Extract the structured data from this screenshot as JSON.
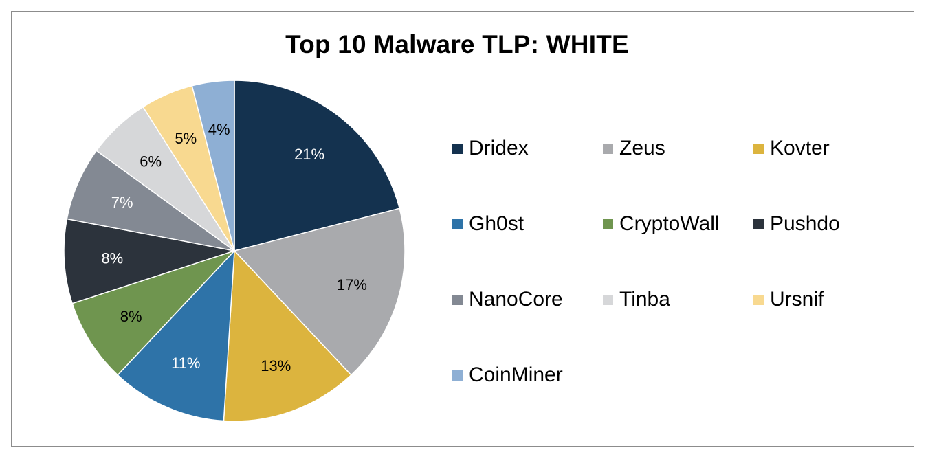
{
  "chart_data": {
    "type": "pie",
    "title": "Top 10 Malware TLP: WHITE",
    "categories": [
      "Dridex",
      "Zeus",
      "Kovter",
      "Gh0st",
      "CryptoWall",
      "Pushdo",
      "NanoCore",
      "Tinba",
      "Ursnif",
      "CoinMiner"
    ],
    "values": [
      21,
      17,
      13,
      11,
      8,
      8,
      7,
      6,
      5,
      4
    ],
    "labels": [
      "21%",
      "17%",
      "13%",
      "11%",
      "8%",
      "8%",
      "7%",
      "6%",
      "5%",
      "4%"
    ],
    "colors": [
      "#14324f",
      "#a9aaad",
      "#dcb43e",
      "#2e73a8",
      "#6f954f",
      "#2c333c",
      "#838993",
      "#d6d7d9",
      "#f8d990",
      "#8eafd4"
    ],
    "label_colors": [
      "#ffffff",
      "#000000",
      "#000000",
      "#ffffff",
      "#000000",
      "#ffffff",
      "#ffffff",
      "#000000",
      "#000000",
      "#000000"
    ],
    "start_angle": "top",
    "direction": "clockwise",
    "legend_placement": "right"
  }
}
